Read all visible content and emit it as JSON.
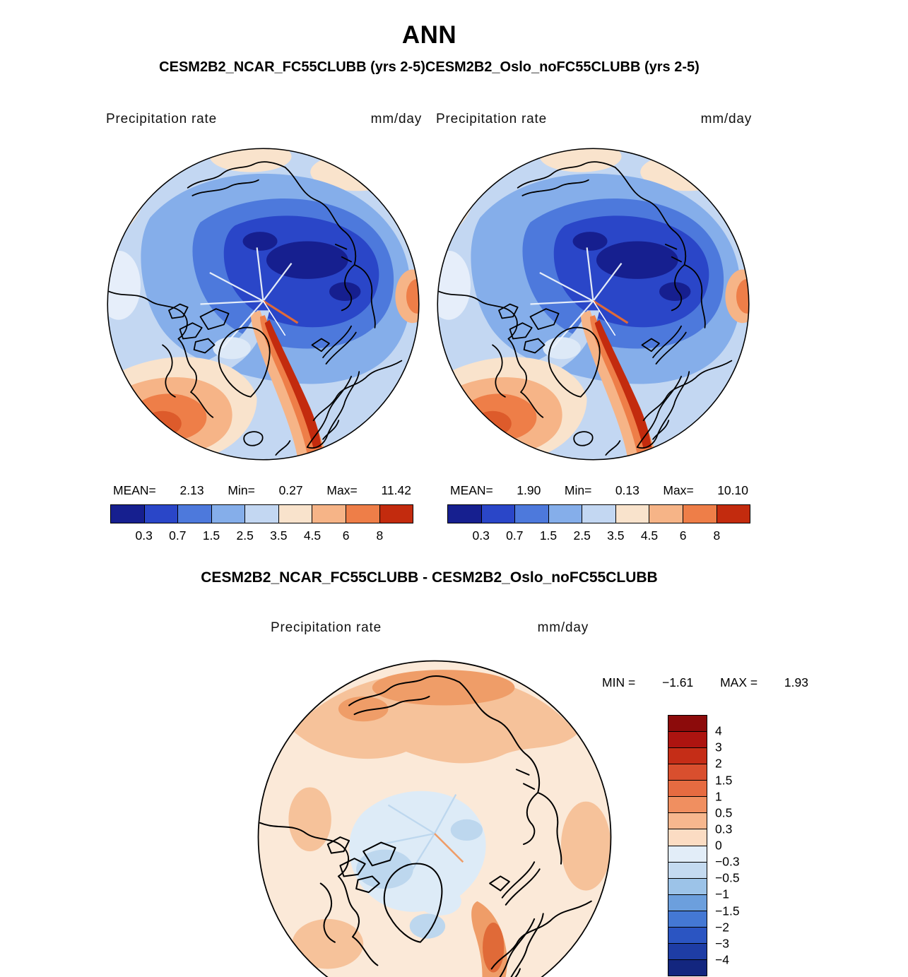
{
  "title": "ANN",
  "subtitle": "CESM2B2_NCAR_FC55CLUBB (yrs 2-5)CESM2B2_Oslo_noFC55CLUBB (yrs 2-5)",
  "diff_title": "CESM2B2_NCAR_FC55CLUBB - CESM2B2_Oslo_noFC55CLUBB",
  "panels": [
    {
      "name": "CESM2B2_NCAR_FC55CLUBB (yrs 2-5)",
      "field_label": "Precipitation rate",
      "units_label": "mm/day",
      "stats": {
        "mean_label": "MEAN=",
        "mean_value": "2.13",
        "min_label": "Min=",
        "min_value": "0.27",
        "max_label": "Max=",
        "max_value": "11.42"
      }
    },
    {
      "name": "CESM2B2_Oslo_noFC55CLUBB (yrs 2-5)",
      "field_label": "Precipitation rate",
      "units_label": "mm/day",
      "stats": {
        "mean_label": "MEAN=",
        "mean_value": "1.90",
        "min_label": "Min=",
        "min_value": "0.13",
        "max_label": "Max=",
        "max_value": "10.10"
      }
    }
  ],
  "diff_panel": {
    "field_label": "Precipitation rate",
    "units_label": "mm/day",
    "min_label": "MIN =",
    "min_value": "−1.61",
    "max_label": "MAX =",
    "max_value": "1.93"
  },
  "colorbars": {
    "precip": {
      "orientation": "horizontal",
      "colors": [
        "#161f8f",
        "#2a46c8",
        "#4d79dc",
        "#85aeea",
        "#c3d7f2",
        "#f9e3cc",
        "#f6b487",
        "#ee7e48",
        "#c32b0e"
      ],
      "ticks": [
        "0.3",
        "0.7",
        "1.5",
        "2.5",
        "3.5",
        "4.5",
        "6",
        "8"
      ]
    },
    "diff": {
      "orientation": "vertical",
      "colors": [
        "#8c0b0b",
        "#ad1410",
        "#c52d17",
        "#d94f2e",
        "#e66b41",
        "#f08f60",
        "#f7b78e",
        "#fbdcc3",
        "#e2edf8",
        "#c4daf0",
        "#9cc3e8",
        "#6c9fdd",
        "#4478d4",
        "#2b55c2",
        "#1e3da5",
        "#13267f"
      ],
      "ticks": [
        "4",
        "3",
        "2",
        "1.5",
        "1",
        "0.5",
        "0.3",
        "0",
        "−0.3",
        "−0.5",
        "−1",
        "−1.5",
        "−2",
        "−3",
        "−4"
      ]
    }
  },
  "chart_data": [
    {
      "type": "heatmap",
      "subtype": "polar-stereographic-filled-contour-map",
      "season": "ANN",
      "title": "CESM2B2_NCAR_FC55CLUBB (yrs 2-5)",
      "variable": "Precipitation rate",
      "units": "mm/day",
      "stats": {
        "mean": 2.13,
        "min": 0.27,
        "max": 11.42
      },
      "contour_levels": [
        0.3,
        0.7,
        1.5,
        2.5,
        3.5,
        4.5,
        6,
        8
      ],
      "palette": [
        "#161f8f",
        "#2a46c8",
        "#4d79dc",
        "#85aeea",
        "#c3d7f2",
        "#f9e3cc",
        "#f6b487",
        "#ee7e48",
        "#c32b0e"
      ],
      "legend_position": "bottom",
      "notes": "Arctic polar view; low values (blue) over central Arctic Ocean, high values (orange/red) over North Atlantic storm track and Norwegian Sea"
    },
    {
      "type": "heatmap",
      "subtype": "polar-stereographic-filled-contour-map",
      "season": "ANN",
      "title": "CESM2B2_Oslo_noFC55CLUBB (yrs 2-5)",
      "variable": "Precipitation rate",
      "units": "mm/day",
      "stats": {
        "mean": 1.9,
        "min": 0.13,
        "max": 10.1
      },
      "contour_levels": [
        0.3,
        0.7,
        1.5,
        2.5,
        3.5,
        4.5,
        6,
        8
      ],
      "palette": [
        "#161f8f",
        "#2a46c8",
        "#4d79dc",
        "#85aeea",
        "#c3d7f2",
        "#f9e3cc",
        "#f6b487",
        "#ee7e48",
        "#c32b0e"
      ],
      "legend_position": "bottom",
      "notes": "Arctic polar view; pattern nearly identical to first panel"
    },
    {
      "type": "heatmap",
      "subtype": "polar-stereographic-filled-contour-map",
      "title": "CESM2B2_NCAR_FC55CLUBB - CESM2B2_Oslo_noFC55CLUBB",
      "variable": "Precipitation rate",
      "units": "mm/day",
      "stats": {
        "min": -1.61,
        "max": 1.93
      },
      "contour_levels": [
        -4,
        -3,
        -2,
        -1.5,
        -1,
        -0.5,
        -0.3,
        0,
        0.3,
        0.5,
        1,
        1.5,
        2,
        3,
        4
      ],
      "palette_top_to_bottom": [
        "#8c0b0b",
        "#ad1410",
        "#c52d17",
        "#d94f2e",
        "#e66b41",
        "#f08f60",
        "#f7b78e",
        "#fbdcc3",
        "#e2edf8",
        "#c4daf0",
        "#9cc3e8",
        "#6c9fdd",
        "#4478d4",
        "#2b55c2",
        "#1e3da5",
        "#13267f"
      ],
      "legend_position": "right",
      "notes": "Difference map: weak positive (light orange) over most of domain, weak negative (light blue) over central Arctic, stronger positive near Norwegian coast"
    }
  ]
}
